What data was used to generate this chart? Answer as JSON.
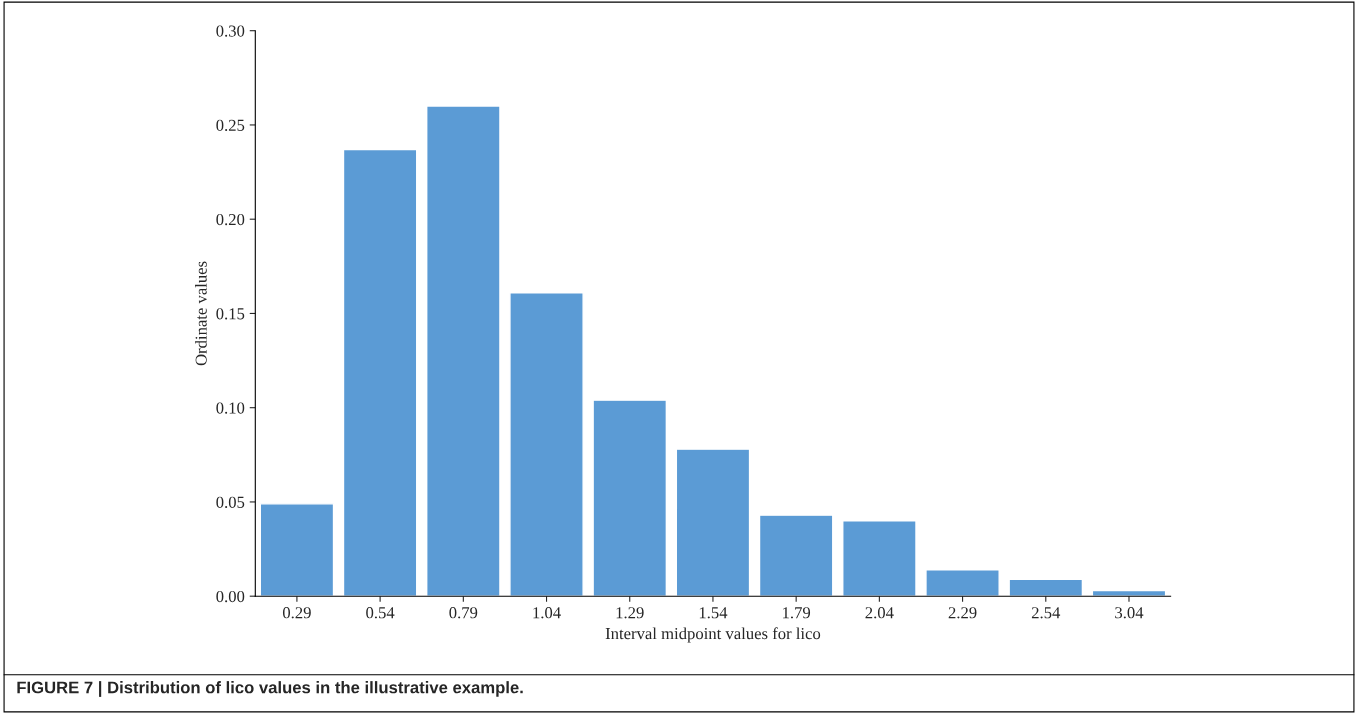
{
  "chart_data": {
    "type": "bar",
    "categories": [
      "0.29",
      "0.54",
      "0.79",
      "1.04",
      "1.29",
      "1.54",
      "1.79",
      "2.04",
      "2.29",
      "2.54",
      "3.04"
    ],
    "values": [
      0.049,
      0.237,
      0.26,
      0.161,
      0.104,
      0.078,
      0.043,
      0.04,
      0.014,
      0.009,
      0.003
    ],
    "color": "#5b9bd5",
    "xlabel": "Interval midpoint values for lico",
    "ylabel": "Ordinate values",
    "ylim": [
      0,
      0.3
    ],
    "yticks": [
      {
        "value": 0,
        "label": "0.00"
      },
      {
        "value": 0.05,
        "label": "0.05"
      },
      {
        "value": 0.1,
        "label": "0.10"
      },
      {
        "value": 0.15,
        "label": "0.15"
      },
      {
        "value": 0.2,
        "label": "0.20"
      },
      {
        "value": 0.25,
        "label": "0.25"
      },
      {
        "value": 0.3,
        "label": "0.30"
      }
    ],
    "grid": false,
    "annotations": [
      "FIGURE 7 | Distribution of lico values in the illustrative example."
    ]
  }
}
